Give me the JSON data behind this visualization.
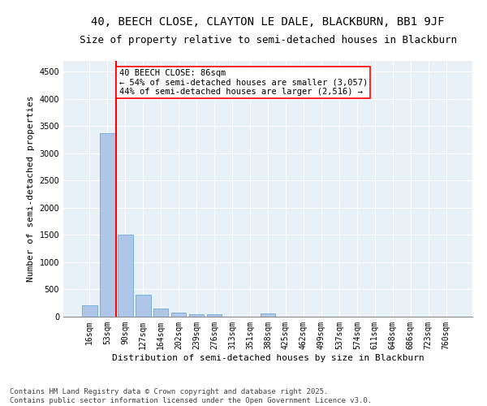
{
  "title_line1": "40, BEECH CLOSE, CLAYTON LE DALE, BLACKBURN, BB1 9JF",
  "title_line2": "Size of property relative to semi-detached houses in Blackburn",
  "xlabel": "Distribution of semi-detached houses by size in Blackburn",
  "ylabel": "Number of semi-detached properties",
  "categories": [
    "16sqm",
    "53sqm",
    "90sqm",
    "127sqm",
    "164sqm",
    "202sqm",
    "239sqm",
    "276sqm",
    "313sqm",
    "351sqm",
    "388sqm",
    "425sqm",
    "462sqm",
    "499sqm",
    "537sqm",
    "574sqm",
    "611sqm",
    "648sqm",
    "686sqm",
    "723sqm",
    "760sqm"
  ],
  "values": [
    210,
    3370,
    1510,
    400,
    155,
    75,
    45,
    40,
    0,
    0,
    60,
    0,
    0,
    0,
    0,
    0,
    0,
    0,
    0,
    0,
    0
  ],
  "bar_color": "#aec6e8",
  "bar_edge_color": "#5a9fd4",
  "vline_color": "red",
  "annotation_text": "40 BEECH CLOSE: 86sqm\n← 54% of semi-detached houses are smaller (3,057)\n44% of semi-detached houses are larger (2,516) →",
  "annotation_box_color": "white",
  "annotation_box_edge_color": "red",
  "ylim": [
    0,
    4700
  ],
  "yticks": [
    0,
    500,
    1000,
    1500,
    2000,
    2500,
    3000,
    3500,
    4000,
    4500
  ],
  "background_color": "#e8f0f8",
  "footer_text": "Contains HM Land Registry data © Crown copyright and database right 2025.\nContains public sector information licensed under the Open Government Licence v3.0.",
  "title_fontsize": 10,
  "subtitle_fontsize": 9,
  "axis_label_fontsize": 8,
  "tick_fontsize": 7,
  "annotation_fontsize": 7.5,
  "footer_fontsize": 6.5
}
